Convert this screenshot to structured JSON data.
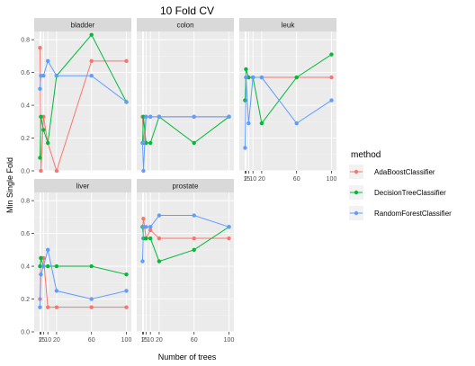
{
  "chart_data": {
    "type": "line",
    "title": "10 Fold CV",
    "xlabel": "Number of trees",
    "ylabel": "Min Single Fold",
    "x_ticks": [
      1,
      2,
      5,
      10,
      20,
      60,
      100
    ],
    "x_tick_labels": [
      "1",
      "2",
      "5",
      "10",
      "20",
      "60",
      "100"
    ],
    "xlim": [
      0,
      100
    ],
    "y_ticks": [
      0.0,
      0.2,
      0.4,
      0.6,
      0.8
    ],
    "y_tick_labels": [
      "0.0",
      "0.2",
      "0.4",
      "0.6",
      "0.8"
    ],
    "ylim": [
      0,
      0.85
    ],
    "grid": true,
    "legend": {
      "title": "method",
      "position": "right",
      "entries": [
        "AdaBoostClassifier",
        "DecisionTreeClassifier",
        "RandomForestClassifier"
      ]
    },
    "colors": {
      "AdaBoostClassifier": "#F8766D",
      "DecisionTreeClassifier": "#00BA38",
      "RandomForestClassifier": "#619CFF"
    },
    "panels": [
      {
        "name": "bladder",
        "series": [
          {
            "name": "AdaBoostClassifier",
            "x": [
              1,
              2,
              5,
              10,
              20,
              60,
              100
            ],
            "y": [
              0.75,
              0.0,
              0.33,
              0.17,
              0.0,
              0.67,
              0.67
            ]
          },
          {
            "name": "DecisionTreeClassifier",
            "x": [
              1,
              2,
              5,
              10,
              20,
              60,
              100
            ],
            "y": [
              0.08,
              0.33,
              0.25,
              0.17,
              0.58,
              0.83,
              0.42
            ]
          },
          {
            "name": "RandomForestClassifier",
            "x": [
              1,
              2,
              5,
              10,
              20,
              60,
              100
            ],
            "y": [
              0.5,
              0.58,
              0.58,
              0.67,
              0.58,
              0.58,
              0.42
            ]
          }
        ]
      },
      {
        "name": "colon",
        "series": [
          {
            "name": "AdaBoostClassifier",
            "x": [
              1,
              2,
              5,
              10,
              20,
              60,
              100
            ],
            "y": [
              0.33,
              0.17,
              0.33,
              0.33,
              0.33,
              0.33,
              0.33
            ]
          },
          {
            "name": "DecisionTreeClassifier",
            "x": [
              1,
              2,
              5,
              10,
              20,
              60,
              100
            ],
            "y": [
              0.17,
              0.33,
              0.17,
              0.17,
              0.33,
              0.17,
              0.33
            ]
          },
          {
            "name": "RandomForestClassifier",
            "x": [
              1,
              2,
              5,
              10,
              20,
              60,
              100
            ],
            "y": [
              0.17,
              0.0,
              0.33,
              0.33,
              0.33,
              0.33,
              0.33
            ]
          }
        ]
      },
      {
        "name": "leuk",
        "series": [
          {
            "name": "AdaBoostClassifier",
            "x": [
              1,
              2,
              5,
              10,
              20,
              60,
              100
            ],
            "y": [
              0.43,
              0.57,
              0.57,
              0.57,
              0.57,
              0.57,
              0.57
            ]
          },
          {
            "name": "DecisionTreeClassifier",
            "x": [
              1,
              2,
              5,
              10,
              20,
              60,
              100
            ],
            "y": [
              0.43,
              0.62,
              0.57,
              0.57,
              0.29,
              0.57,
              0.71
            ]
          },
          {
            "name": "RandomForestClassifier",
            "x": [
              1,
              2,
              5,
              10,
              20,
              60,
              100
            ],
            "y": [
              0.14,
              0.57,
              0.29,
              0.57,
              0.57,
              0.29,
              0.43
            ]
          }
        ]
      },
      {
        "name": "liver",
        "series": [
          {
            "name": "AdaBoostClassifier",
            "x": [
              1,
              2,
              5,
              10,
              20,
              60,
              100
            ],
            "y": [
              0.2,
              0.45,
              0.45,
              0.15,
              0.15,
              0.15,
              0.15
            ]
          },
          {
            "name": "DecisionTreeClassifier",
            "x": [
              1,
              2,
              5,
              10,
              20,
              60,
              100
            ],
            "y": [
              0.4,
              0.45,
              0.4,
              0.4,
              0.4,
              0.4,
              0.35
            ]
          },
          {
            "name": "RandomForestClassifier",
            "x": [
              1,
              2,
              5,
              10,
              20,
              60,
              100
            ],
            "y": [
              0.15,
              0.35,
              0.4,
              0.5,
              0.25,
              0.2,
              0.25
            ]
          }
        ]
      },
      {
        "name": "prostate",
        "series": [
          {
            "name": "AdaBoostClassifier",
            "x": [
              1,
              2,
              5,
              10,
              20,
              60,
              100
            ],
            "y": [
              0.64,
              0.69,
              0.57,
              0.62,
              0.57,
              0.57,
              0.57
            ]
          },
          {
            "name": "DecisionTreeClassifier",
            "x": [
              1,
              2,
              5,
              10,
              20,
              60,
              100
            ],
            "y": [
              0.64,
              0.57,
              0.57,
              0.57,
              0.43,
              0.5,
              0.64
            ]
          },
          {
            "name": "RandomForestClassifier",
            "x": [
              1,
              2,
              5,
              10,
              20,
              60,
              100
            ],
            "y": [
              0.43,
              0.64,
              0.64,
              0.64,
              0.71,
              0.71,
              0.64
            ]
          }
        ]
      }
    ]
  }
}
